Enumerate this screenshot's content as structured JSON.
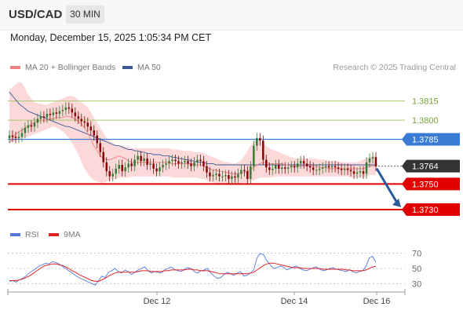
{
  "header": {
    "symbol": "USD/CAD",
    "timeframe": "30 MIN",
    "datetime": "Monday, December 15, 2025 1:05:34 PM CET"
  },
  "legend": {
    "ma20_label": "MA 20 + Bollinger Bands",
    "ma50_label": "MA 50",
    "copyright": "Research © 2025 Trading Central"
  },
  "rsi_legend": {
    "rsi_label": "RSI",
    "ma9_label": "9MA"
  },
  "colors": {
    "ma20": "#f08080",
    "ma50": "#3c5a99",
    "band_fill": "#fbd9d9",
    "candle_up": "#2e7d32",
    "candle_down": "#8b0000",
    "support": "#e00000",
    "pivot": "#3a7bd5",
    "resistance": "#a8c870",
    "price_tag": "#333333",
    "rsi": "#5577dd",
    "rsi_ma": "#dd2222",
    "arrow": "#2a5a9a"
  },
  "chart_data": {
    "type": "candlestick",
    "x_ticks": [
      "Dec 12",
      "Dec 14",
      "Dec 16"
    ],
    "ylim": [
      1.3722,
      1.3832
    ],
    "levels": [
      {
        "value": 1.3815,
        "label": "1.3815",
        "kind": "resistance"
      },
      {
        "value": 1.38,
        "label": "1.3800",
        "kind": "resistance"
      },
      {
        "value": 1.3785,
        "label": "1.3785",
        "kind": "pivot"
      },
      {
        "value": 1.3764,
        "label": "1.3764",
        "kind": "current"
      },
      {
        "value": 1.375,
        "label": "1.3750",
        "kind": "support"
      },
      {
        "value": 1.373,
        "label": "1.3730",
        "kind": "support"
      }
    ],
    "close_series": [
      1.3788,
      1.3787,
      1.3786,
      1.3787,
      1.379,
      1.3794,
      1.3796,
      1.3795,
      1.3798,
      1.3801,
      1.3803,
      1.3802,
      1.3805,
      1.3804,
      1.3806,
      1.3805,
      1.3807,
      1.3808,
      1.381,
      1.3809,
      1.3806,
      1.3803,
      1.3801,
      1.3799,
      1.3798,
      1.3795,
      1.3792,
      1.3788,
      1.3782,
      1.3775,
      1.3767,
      1.376,
      1.3756,
      1.3758,
      1.3762,
      1.3765,
      1.376,
      1.3763,
      1.3766,
      1.3764,
      1.3769,
      1.3772,
      1.3768,
      1.377,
      1.3765,
      1.3766,
      1.3762,
      1.376,
      1.3763,
      1.3765,
      1.3766,
      1.3768,
      1.3769,
      1.3768,
      1.3766,
      1.3767,
      1.3768,
      1.3766,
      1.3764,
      1.3767,
      1.3769,
      1.3768,
      1.3764,
      1.3759,
      1.3756,
      1.3757,
      1.3758,
      1.3756,
      1.3756,
      1.3757,
      1.3754,
      1.3756,
      1.3755,
      1.3758,
      1.3761,
      1.376,
      1.3754,
      1.3764,
      1.378,
      1.3786,
      1.3784,
      1.3769,
      1.3763,
      1.3761,
      1.3762,
      1.3765,
      1.3762,
      1.3763,
      1.3762,
      1.3763,
      1.3764,
      1.3763,
      1.3766,
      1.3768,
      1.3766,
      1.3764,
      1.3763,
      1.3761,
      1.3761,
      1.3762,
      1.3763,
      1.3764,
      1.3763,
      1.3764,
      1.3763,
      1.3762,
      1.3761,
      1.3762,
      1.3761,
      1.376,
      1.3758,
      1.3759,
      1.376,
      1.3758,
      1.3767,
      1.377,
      1.3771,
      1.3764
    ],
    "ma20_series": [
      1.3782,
      1.3786,
      1.3789,
      1.3791,
      1.3792,
      1.3794,
      1.3795,
      1.3797,
      1.3798,
      1.3799,
      1.38,
      1.38,
      1.38,
      1.3801,
      1.3801,
      1.3802,
      1.3802,
      1.3802,
      1.3803,
      1.3803,
      1.3802,
      1.3801,
      1.3799,
      1.3797,
      1.3794,
      1.379,
      1.3785,
      1.378,
      1.3776,
      1.3772,
      1.377,
      1.3769,
      1.3769,
      1.377,
      1.3771,
      1.3772,
      1.3771,
      1.377,
      1.3768,
      1.3767,
      1.3767,
      1.3767,
      1.3767,
      1.3767,
      1.3767,
      1.3767,
      1.3767,
      1.3767,
      1.3767,
      1.3767,
      1.3767,
      1.3767,
      1.3766,
      1.3766,
      1.3766,
      1.3766,
      1.3766,
      1.3766,
      1.3766,
      1.3765,
      1.3765,
      1.3765,
      1.3764,
      1.3763,
      1.3762,
      1.3761,
      1.3761,
      1.376,
      1.376,
      1.3759,
      1.3759,
      1.3758,
      1.3758,
      1.3758,
      1.3759,
      1.3759,
      1.376,
      1.3761,
      1.3763,
      1.3765,
      1.3766,
      1.3767,
      1.3767,
      1.3766,
      1.3766,
      1.3766,
      1.3766,
      1.3766,
      1.3765,
      1.3765,
      1.3764,
      1.3764,
      1.3764,
      1.3764,
      1.3764,
      1.3764,
      1.3764,
      1.3764,
      1.3764,
      1.3763,
      1.3763,
      1.3763,
      1.3762,
      1.3762,
      1.3762,
      1.3762,
      1.3762,
      1.3762,
      1.3762,
      1.3762,
      1.3762,
      1.3762,
      1.3762,
      1.3762,
      1.3763,
      1.3764,
      1.3764,
      1.3764
    ],
    "ma50_series": [
      1.3822,
      1.3819,
      1.3816,
      1.3813,
      1.3811,
      1.3809,
      1.3807,
      1.3806,
      1.3805,
      1.3804,
      1.3803,
      1.3802,
      1.3801,
      1.38,
      1.3799,
      1.3798,
      1.3797,
      1.3796,
      1.3795,
      1.3795,
      1.3794,
      1.3793,
      1.3792,
      1.3791,
      1.379,
      1.3789,
      1.3788,
      1.3787,
      1.3786,
      1.3785,
      1.3784,
      1.3783,
      1.3782,
      1.3781,
      1.378,
      1.378,
      1.3779,
      1.3778,
      1.3777,
      1.3777,
      1.3776,
      1.3776,
      1.3775,
      1.3775,
      1.3774,
      1.3774,
      1.3773,
      1.3773,
      1.3773,
      1.3772,
      1.3772,
      1.3772,
      1.3771,
      1.3771,
      1.377,
      1.377,
      1.3769,
      1.3769,
      1.3768,
      1.3768,
      1.3767,
      1.3767,
      1.3767,
      1.3766,
      1.3766,
      1.3766,
      1.3765,
      1.3765,
      1.3765,
      1.3765,
      1.3765,
      1.3765,
      1.3765,
      1.3765,
      1.3765,
      1.3765,
      1.3765,
      1.3765,
      1.3765,
      1.3765,
      1.3765,
      1.3765,
      1.3765,
      1.3765,
      1.3765,
      1.3765,
      1.3765,
      1.3765,
      1.3765,
      1.3765,
      1.3765,
      1.3765,
      1.3765,
      1.3765,
      1.3765,
      1.3765,
      1.3765,
      1.3765,
      1.3765,
      1.3765,
      1.3765,
      1.3765,
      1.3765,
      1.3765,
      1.3765,
      1.3765,
      1.3765,
      1.3765,
      1.3765,
      1.3765,
      1.3765,
      1.3765,
      1.3765,
      1.3765,
      1.3765,
      1.3765,
      1.3765,
      1.3765
    ],
    "bollinger_upper": [
      1.3824,
      1.3826,
      1.3828,
      1.383,
      1.3829,
      1.3825,
      1.382,
      1.3817,
      1.3814,
      1.3813,
      1.3813,
      1.3812,
      1.3812,
      1.3813,
      1.3814,
      1.3815,
      1.3816,
      1.3817,
      1.3818,
      1.3819,
      1.3819,
      1.3818,
      1.3816,
      1.3814,
      1.3812,
      1.381,
      1.3806,
      1.3802,
      1.3798,
      1.3794,
      1.379,
      1.3786,
      1.3784,
      1.3782,
      1.378,
      1.378,
      1.378,
      1.3779,
      1.3779,
      1.3778,
      1.3778,
      1.3778,
      1.3778,
      1.3778,
      1.3778,
      1.3778,
      1.3778,
      1.3778,
      1.3778,
      1.3778,
      1.3778,
      1.3778,
      1.3777,
      1.3777,
      1.3777,
      1.3776,
      1.3776,
      1.3776,
      1.3776,
      1.3775,
      1.3775,
      1.3775,
      1.3774,
      1.3773,
      1.3772,
      1.3771,
      1.377,
      1.3769,
      1.3768,
      1.3767,
      1.3767,
      1.3766,
      1.3766,
      1.3767,
      1.3769,
      1.3772,
      1.3776,
      1.378,
      1.3783,
      1.3785,
      1.3784,
      1.3782,
      1.378,
      1.3778,
      1.3777,
      1.3776,
      1.3775,
      1.3774,
      1.3773,
      1.3772,
      1.3771,
      1.377,
      1.377,
      1.377,
      1.377,
      1.377,
      1.377,
      1.377,
      1.377,
      1.3769,
      1.3769,
      1.3769,
      1.3768,
      1.3768,
      1.3768,
      1.3768,
      1.3767,
      1.3767,
      1.3767,
      1.3767,
      1.3767,
      1.3767,
      1.3768,
      1.3769,
      1.377,
      1.3771,
      1.3772,
      1.3772
    ],
    "bollinger_lower": [
      1.3782,
      1.3783,
      1.3784,
      1.3785,
      1.3786,
      1.3786,
      1.3787,
      1.3788,
      1.3789,
      1.379,
      1.3791,
      1.3792,
      1.3793,
      1.3794,
      1.3795,
      1.3794,
      1.3793,
      1.3791,
      1.3789,
      1.3786,
      1.3782,
      1.3778,
      1.3773,
      1.3767,
      1.3762,
      1.3758,
      1.3755,
      1.3753,
      1.3752,
      1.3751,
      1.3751,
      1.3752,
      1.3753,
      1.3754,
      1.3754,
      1.3755,
      1.3755,
      1.3755,
      1.3755,
      1.3756,
      1.3756,
      1.3756,
      1.3756,
      1.3756,
      1.3756,
      1.3756,
      1.3756,
      1.3756,
      1.3756,
      1.3756,
      1.3756,
      1.3756,
      1.3755,
      1.3755,
      1.3755,
      1.3755,
      1.3755,
      1.3755,
      1.3755,
      1.3755,
      1.3755,
      1.3754,
      1.3754,
      1.3753,
      1.3752,
      1.3751,
      1.3751,
      1.375,
      1.375,
      1.375,
      1.375,
      1.375,
      1.375,
      1.375,
      1.3751,
      1.3751,
      1.3751,
      1.3752,
      1.3753,
      1.3754,
      1.3755,
      1.3755,
      1.3755,
      1.3755,
      1.3755,
      1.3756,
      1.3756,
      1.3756,
      1.3756,
      1.3756,
      1.3756,
      1.3756,
      1.3756,
      1.3756,
      1.3756,
      1.3756,
      1.3756,
      1.3756,
      1.3756,
      1.3756,
      1.3756,
      1.3756,
      1.3756,
      1.3756,
      1.3756,
      1.3756,
      1.3756,
      1.3756,
      1.3756,
      1.3755,
      1.3755,
      1.3755,
      1.3755,
      1.3755,
      1.3756,
      1.3757,
      1.3757,
      1.3757
    ],
    "rsi_ylim": [
      20,
      80
    ],
    "rsi_ticks": [
      {
        "value": 70,
        "label": "70"
      },
      {
        "value": 50,
        "label": "50"
      },
      {
        "value": 30,
        "label": "30"
      }
    ],
    "rsi_series": [
      33,
      34,
      32,
      35,
      37,
      40,
      44,
      47,
      50,
      53,
      55,
      57,
      56,
      59,
      58,
      56,
      53,
      50,
      47,
      44,
      41,
      38,
      36,
      34,
      32,
      30,
      28,
      34,
      40,
      38,
      45,
      47,
      50,
      46,
      44,
      48,
      46,
      42,
      45,
      48,
      50,
      52,
      47,
      44,
      46,
      45,
      44,
      48,
      50,
      52,
      49,
      47,
      46,
      49,
      51,
      50,
      46,
      44,
      47,
      48,
      50,
      44,
      40,
      37,
      38,
      42,
      45,
      43,
      41,
      44,
      46,
      40,
      41,
      44,
      48,
      64,
      70,
      68,
      60,
      55,
      50,
      51,
      53,
      52,
      48,
      50,
      52,
      53,
      50,
      48,
      47,
      49,
      51,
      52,
      49,
      47,
      48,
      50,
      51,
      49,
      48,
      47,
      46,
      48,
      46,
      44,
      46,
      47,
      53,
      64,
      66,
      58
    ],
    "rsi_ma_series": [
      34,
      34,
      34,
      35,
      36,
      38,
      40,
      43,
      46,
      49,
      52,
      54,
      55,
      56,
      56,
      55,
      54,
      52,
      50,
      47,
      45,
      42,
      40,
      38,
      36,
      34,
      33,
      33,
      35,
      37,
      40,
      42,
      44,
      45,
      45,
      45,
      45,
      45,
      45,
      46,
      47,
      47,
      47,
      46,
      46,
      46,
      46,
      47,
      47,
      48,
      48,
      48,
      48,
      48,
      49,
      49,
      48,
      48,
      47,
      47,
      47,
      46,
      45,
      44,
      43,
      43,
      43,
      43,
      43,
      43,
      43,
      43,
      43,
      44,
      45,
      48,
      51,
      54,
      56,
      57,
      57,
      56,
      55,
      54,
      53,
      52,
      51,
      51,
      51,
      50,
      50,
      50,
      50,
      50,
      50,
      49,
      49,
      49,
      49,
      49,
      49,
      49,
      48,
      48,
      47,
      47,
      47,
      47,
      48,
      50,
      52,
      53
    ]
  }
}
